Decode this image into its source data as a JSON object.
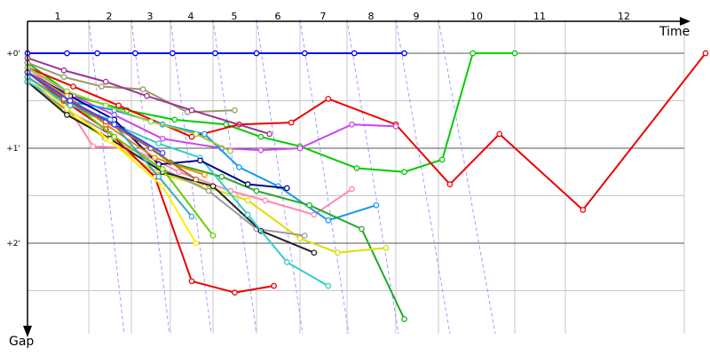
{
  "chart_data": {
    "type": "line",
    "xlabel": "Time",
    "ylabel": "Gap",
    "x_ticks": [
      "1",
      "2",
      "3",
      "4",
      "5",
      "6",
      "7",
      "8",
      "9",
      "10",
      "11",
      "12"
    ],
    "y_ticks": [
      "+0'",
      "+1'",
      "+2'"
    ],
    "xlim": [
      0,
      15
    ],
    "ylim_minutes": [
      -0.25,
      2.9
    ],
    "grid": true,
    "colors": {
      "axis": "#000000",
      "grid_major": "#555555",
      "grid_minor": "#c8c8c8",
      "lap_guide": "#8080ff"
    },
    "series": [
      {
        "color": "#0000ff",
        "x": [
          0,
          1.3,
          2.2,
          3.1,
          4.05,
          5.05,
          6.0,
          7.1,
          8.15,
          9.2
        ],
        "y": [
          0,
          0,
          0,
          0,
          0,
          0,
          0,
          0,
          0,
          0
        ]
      },
      {
        "color": "#00cc00",
        "x": [
          0,
          1.5,
          2.9,
          4.1,
          5.3,
          6.1,
          7.0,
          8.2,
          9.2,
          10.1,
          10.9,
          12.0
        ],
        "y": [
          0.1,
          0.45,
          0.6,
          0.7,
          0.75,
          0.88,
          0.98,
          1.21,
          1.25,
          1.12,
          0,
          0
        ]
      },
      {
        "color": "#ee0000",
        "x": [
          0,
          1.5,
          2.7,
          4.5,
          5.6,
          6.8,
          7.6,
          9.0,
          10.3,
          11.6,
          13.3,
          15.0
        ],
        "y": [
          0.15,
          0.35,
          0.55,
          0.88,
          0.75,
          0.73,
          0.48,
          0.75,
          1.38,
          0.85,
          1.65,
          0
        ]
      },
      {
        "color": "#cc44ee",
        "x": [
          0,
          1.5,
          2.6,
          3.8,
          5.2,
          6.1,
          7.0,
          8.1,
          9.0
        ],
        "y": [
          0.15,
          0.45,
          0.65,
          0.9,
          1.0,
          1.02,
          1.0,
          0.75,
          0.77
        ]
      },
      {
        "color": "#ff88aa",
        "x": [
          0,
          1.0,
          2.1,
          3.0,
          4.2,
          5.4,
          6.2,
          7.3,
          8.1
        ],
        "y": [
          0.15,
          0.4,
          0.98,
          1.0,
          1.25,
          1.45,
          1.55,
          1.7,
          1.43
        ]
      },
      {
        "color": "#1199ee",
        "x": [
          0,
          1.3,
          2.6,
          3.8,
          4.8,
          5.6,
          6.5,
          7.6,
          8.6
        ],
        "y": [
          0.2,
          0.5,
          0.6,
          0.75,
          0.85,
          1.2,
          1.4,
          1.76,
          1.6
        ]
      },
      {
        "color": "#22aa22",
        "x": [
          0,
          1.4,
          2.8,
          4.0,
          5.2,
          6.0,
          7.2,
          8.3,
          9.2
        ],
        "y": [
          0.25,
          0.55,
          0.8,
          1.15,
          1.3,
          1.45,
          1.6,
          1.85,
          2.8
        ]
      },
      {
        "color": "#dddd00",
        "x": [
          0,
          1.2,
          2.4,
          3.6,
          4.8,
          5.8,
          7.0,
          7.8,
          8.8
        ],
        "y": [
          0.3,
          0.6,
          0.9,
          1.25,
          1.4,
          1.55,
          1.95,
          2.1,
          2.05
        ]
      },
      {
        "color": "#999999",
        "x": [
          0,
          1.3,
          2.5,
          3.7,
          4.9,
          6.0,
          7.1
        ],
        "y": [
          0.3,
          0.6,
          0.85,
          1.2,
          1.45,
          1.85,
          1.92
        ]
      },
      {
        "color": "#222222",
        "x": [
          0,
          1.3,
          2.5,
          3.8,
          5.0,
          6.1,
          7.3
        ],
        "y": [
          0.3,
          0.65,
          0.9,
          1.25,
          1.4,
          1.87,
          2.1
        ]
      },
      {
        "color": "#33cccc",
        "x": [
          0,
          1.4,
          2.6,
          3.7,
          4.7,
          5.8,
          6.7,
          7.6
        ],
        "y": [
          0.3,
          0.55,
          0.75,
          0.95,
          1.1,
          1.7,
          2.2,
          2.45
        ]
      },
      {
        "color": "#e60000",
        "x": [
          0,
          1.2,
          2.4,
          3.6,
          4.5,
          5.5,
          6.4
        ],
        "y": [
          0.2,
          0.5,
          0.8,
          1.3,
          2.4,
          2.52,
          2.45
        ]
      },
      {
        "color": "#00008b",
        "x": [
          0,
          1.4,
          2.6,
          3.7,
          4.7,
          5.8,
          6.7
        ],
        "y": [
          0.2,
          0.45,
          0.7,
          1.17,
          1.13,
          1.38,
          1.42
        ]
      },
      {
        "color": "#9acd32",
        "x": [
          0,
          1.3,
          2.4,
          3.5,
          4.6,
          5.4
        ],
        "y": [
          0.15,
          0.4,
          0.55,
          0.72,
          0.85,
          1.03
        ]
      },
      {
        "color": "#999966",
        "x": [
          0,
          1.2,
          2.3,
          3.3,
          4.4,
          5.5
        ],
        "y": [
          0.1,
          0.25,
          0.35,
          0.38,
          0.62,
          0.6
        ]
      },
      {
        "color": "#993399",
        "x": [
          0,
          1.2,
          2.4,
          3.4,
          4.5,
          6.3
        ],
        "y": [
          0.05,
          0.18,
          0.3,
          0.45,
          0.6,
          0.85
        ]
      },
      {
        "color": "#ee8800",
        "x": [
          0,
          1.3,
          2.4,
          3.6,
          4.8
        ],
        "y": [
          0.2,
          0.45,
          0.75,
          1.1,
          1.28
        ]
      },
      {
        "color": "#66cc00",
        "x": [
          0,
          1.4,
          2.6,
          3.8,
          5.0
        ],
        "y": [
          0.2,
          0.5,
          0.88,
          1.22,
          1.92
        ]
      },
      {
        "color": "#ffee00",
        "x": [
          0,
          1.3,
          2.5,
          3.8,
          4.6
        ],
        "y": [
          0.25,
          0.58,
          0.92,
          1.4,
          2.0
        ]
      },
      {
        "color": "#33aacc",
        "x": [
          0,
          1.4,
          2.5,
          3.7,
          4.5
        ],
        "y": [
          0.25,
          0.55,
          0.7,
          1.3,
          1.72
        ]
      },
      {
        "color": "#aa6633",
        "x": [
          0,
          1.2,
          2.4,
          3.5,
          4.6
        ],
        "y": [
          0.2,
          0.48,
          0.72,
          1.0,
          1.33
        ]
      },
      {
        "color": "#4444ff",
        "x": [
          0,
          1.4,
          2.6,
          3.8
        ],
        "y": [
          0.2,
          0.5,
          0.75,
          1.05
        ]
      }
    ]
  }
}
